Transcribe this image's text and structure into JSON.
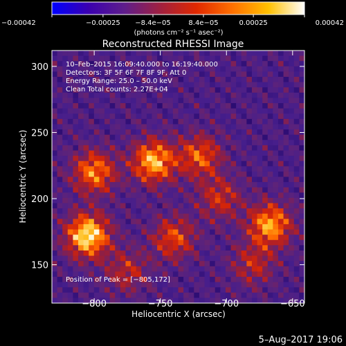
{
  "chart_data": {
    "type": "heatmap",
    "title": "Reconstructed RHESSI Image",
    "xlabel": "Heliocentric X (arcsec)",
    "ylabel": "Heliocentric Y (arcsec)",
    "xlim": [
      -832,
      -641
    ],
    "ylim": [
      121,
      312
    ],
    "x_ticks": [
      -800,
      -750,
      -700,
      -650
    ],
    "x_tick_labels": [
      "−800",
      "−750",
      "−700",
      "−650"
    ],
    "y_ticks": [
      150,
      200,
      250,
      300
    ],
    "y_tick_labels": [
      "150",
      "200",
      "250",
      "300"
    ],
    "colorbar": {
      "range": [
        -0.00042,
        0.00042
      ],
      "tick_values": [
        -0.00042,
        -0.00025,
        -8.4e-05,
        8.4e-05,
        0.00025,
        0.00042
      ],
      "tick_labels": [
        "−0.00042",
        "−0.00025",
        "−8.4e−05",
        "8.4e−05",
        "0.00025",
        "0.00042"
      ],
      "unit_label": "(photons cm⁻² s⁻¹ asec⁻²)",
      "colors": [
        "#0000ff",
        "#3a00b0",
        "#5e1d8c",
        "#a02040",
        "#e02800",
        "#ff7000",
        "#ffc000",
        "#ffffff"
      ]
    },
    "info_lines": [
      "10–Feb–2015 16:09:40.000 to 16:19:40.000",
      "Detectors: 3F 5F 6F 7F 8F 9F, Att 0",
      "Energy Range: 25.0 – 50.0 keV",
      "Clean     Total counts: 2.27E+04"
    ],
    "peak_label": "Position of Peak = [−805,172]",
    "peak_position": [
      -805,
      172
    ],
    "grid": false,
    "sources": [
      {
        "x": -805,
        "y": 172,
        "rel_intensity": 1.0
      },
      {
        "x": -755,
        "y": 228,
        "rel_intensity": 0.85
      },
      {
        "x": -800,
        "y": 220,
        "rel_intensity": 0.7
      },
      {
        "x": -720,
        "y": 232,
        "rel_intensity": 0.6
      },
      {
        "x": -667,
        "y": 180,
        "rel_intensity": 0.8
      },
      {
        "x": -740,
        "y": 170,
        "rel_intensity": 0.55
      },
      {
        "x": -705,
        "y": 200,
        "rel_intensity": 0.45
      },
      {
        "x": -775,
        "y": 145,
        "rel_intensity": 0.4
      },
      {
        "x": -680,
        "y": 150,
        "rel_intensity": 0.4
      }
    ]
  },
  "footer": {
    "date": "5–Aug–2017 19:06"
  }
}
